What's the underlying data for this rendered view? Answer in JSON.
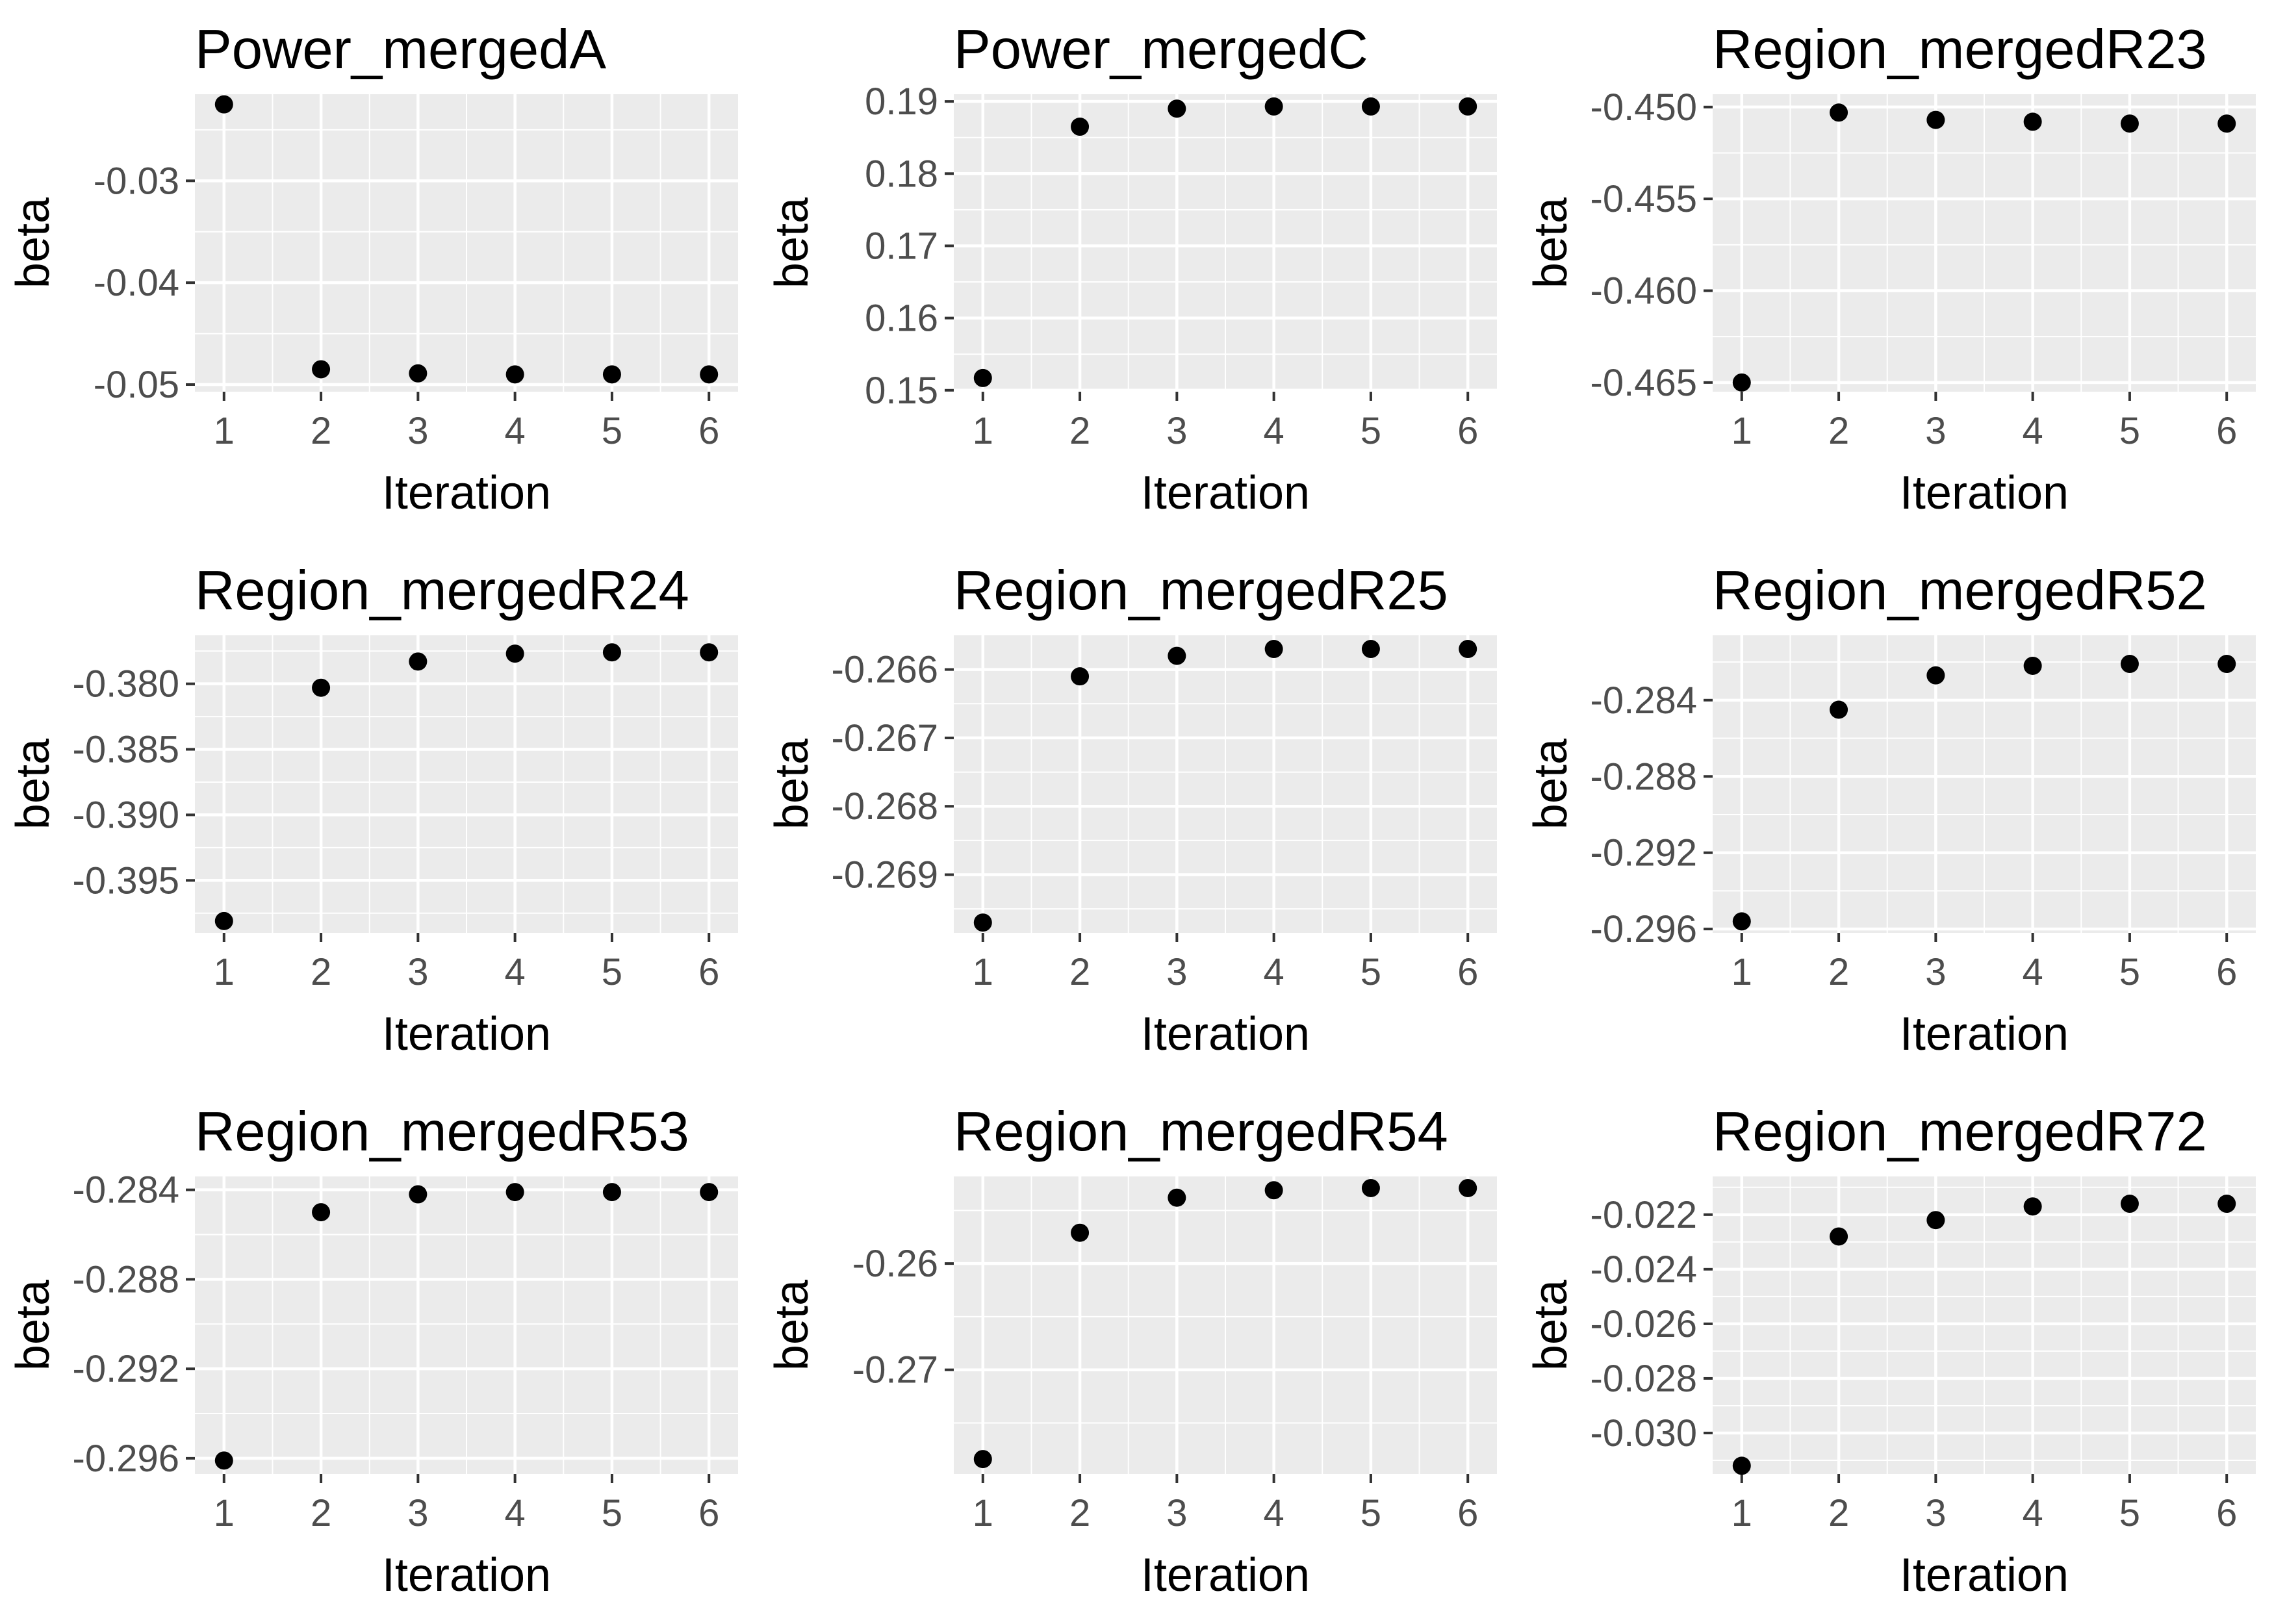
{
  "chart_data": [
    {
      "type": "scatter",
      "title": "Power_mergedA",
      "xlabel": "Iteration",
      "ylabel": "beta",
      "x": [
        1,
        2,
        3,
        4,
        5,
        6
      ],
      "x_ticks": [
        "1",
        "2",
        "3",
        "4",
        "5",
        "6"
      ],
      "y": [
        -0.0225,
        -0.0485,
        -0.0489,
        -0.049,
        -0.049,
        -0.049
      ],
      "y_ticks": [
        -0.03,
        -0.04,
        -0.05
      ],
      "y_tick_labels": [
        "-0.03",
        "-0.04",
        "-0.05"
      ],
      "ylim": [
        -0.0507,
        -0.0215
      ],
      "grid": true,
      "point_color": "#000000",
      "panel_color": "#ebebeb"
    },
    {
      "type": "scatter",
      "title": "Power_mergedC",
      "xlabel": "Iteration",
      "ylabel": "beta",
      "x": [
        1,
        2,
        3,
        4,
        5,
        6
      ],
      "x_ticks": [
        "1",
        "2",
        "3",
        "4",
        "5",
        "6"
      ],
      "y": [
        0.1517,
        0.1865,
        0.189,
        0.1893,
        0.1893,
        0.1893
      ],
      "y_ticks": [
        0.15,
        0.16,
        0.17,
        0.18,
        0.19
      ],
      "y_tick_labels": [
        "0.15",
        "0.16",
        "0.17",
        "0.18",
        "0.19"
      ],
      "ylim": [
        0.1498,
        0.191
      ],
      "grid": true,
      "point_color": "#000000",
      "panel_color": "#ebebeb"
    },
    {
      "type": "scatter",
      "title": "Region_mergedR23",
      "xlabel": "Iteration",
      "ylabel": "beta",
      "x": [
        1,
        2,
        3,
        4,
        5,
        6
      ],
      "x_ticks": [
        "1",
        "2",
        "3",
        "4",
        "5",
        "6"
      ],
      "y": [
        -0.465,
        -0.4503,
        -0.4507,
        -0.4508,
        -0.4509,
        -0.4509
      ],
      "y_ticks": [
        -0.45,
        -0.455,
        -0.46,
        -0.465
      ],
      "y_tick_labels": [
        "-0.450",
        "-0.455",
        "-0.460",
        "-0.465"
      ],
      "ylim": [
        -0.4655,
        -0.4493
      ],
      "grid": true,
      "point_color": "#000000",
      "panel_color": "#ebebeb"
    },
    {
      "type": "scatter",
      "title": "Region_mergedR24",
      "xlabel": "Iteration",
      "ylabel": "beta",
      "x": [
        1,
        2,
        3,
        4,
        5,
        6
      ],
      "x_ticks": [
        "1",
        "2",
        "3",
        "4",
        "5",
        "6"
      ],
      "y": [
        -0.3981,
        -0.3803,
        -0.3783,
        -0.3777,
        -0.3776,
        -0.3776
      ],
      "y_ticks": [
        -0.38,
        -0.385,
        -0.39,
        -0.395
      ],
      "y_tick_labels": [
        "-0.380",
        "-0.385",
        "-0.390",
        "-0.395"
      ],
      "ylim": [
        -0.399,
        -0.3763
      ],
      "grid": true,
      "point_color": "#000000",
      "panel_color": "#ebebeb"
    },
    {
      "type": "scatter",
      "title": "Region_mergedR25",
      "xlabel": "Iteration",
      "ylabel": "beta",
      "x": [
        1,
        2,
        3,
        4,
        5,
        6
      ],
      "x_ticks": [
        "1",
        "2",
        "3",
        "4",
        "5",
        "6"
      ],
      "y": [
        -0.2697,
        -0.2661,
        -0.2658,
        -0.2657,
        -0.2657,
        -0.2657
      ],
      "y_ticks": [
        -0.266,
        -0.267,
        -0.268,
        -0.269
      ],
      "y_tick_labels": [
        "-0.266",
        "-0.267",
        "-0.268",
        "-0.269"
      ],
      "ylim": [
        -0.26985,
        -0.2655
      ],
      "grid": true,
      "point_color": "#000000",
      "panel_color": "#ebebeb"
    },
    {
      "type": "scatter",
      "title": "Region_mergedR52",
      "xlabel": "Iteration",
      "ylabel": "beta",
      "x": [
        1,
        2,
        3,
        4,
        5,
        6
      ],
      "x_ticks": [
        "1",
        "2",
        "3",
        "4",
        "5",
        "6"
      ],
      "y": [
        -0.2956,
        -0.2845,
        -0.2827,
        -0.2822,
        -0.2821,
        -0.2821
      ],
      "y_ticks": [
        -0.284,
        -0.288,
        -0.292,
        -0.296
      ],
      "y_tick_labels": [
        "-0.284",
        "-0.288",
        "-0.292",
        "-0.296"
      ],
      "ylim": [
        -0.2962,
        -0.2806
      ],
      "grid": true,
      "point_color": "#000000",
      "panel_color": "#ebebeb"
    },
    {
      "type": "scatter",
      "title": "Region_mergedR53",
      "xlabel": "Iteration",
      "ylabel": "beta",
      "x": [
        1,
        2,
        3,
        4,
        5,
        6
      ],
      "x_ticks": [
        "1",
        "2",
        "3",
        "4",
        "5",
        "6"
      ],
      "y": [
        -0.2961,
        -0.285,
        -0.2842,
        -0.2841,
        -0.2841,
        -0.2841
      ],
      "y_ticks": [
        -0.284,
        -0.288,
        -0.292,
        -0.296
      ],
      "y_tick_labels": [
        "-0.284",
        "-0.288",
        "-0.292",
        "-0.296"
      ],
      "ylim": [
        -0.2967,
        -0.2834
      ],
      "grid": true,
      "point_color": "#000000",
      "panel_color": "#ebebeb"
    },
    {
      "type": "scatter",
      "title": "Region_mergedR54",
      "xlabel": "Iteration",
      "ylabel": "beta",
      "x": [
        1,
        2,
        3,
        4,
        5,
        6
      ],
      "x_ticks": [
        "1",
        "2",
        "3",
        "4",
        "5",
        "6"
      ],
      "y": [
        -0.2784,
        -0.2571,
        -0.2538,
        -0.2531,
        -0.2529,
        -0.2529
      ],
      "y_ticks": [
        -0.26,
        -0.27
      ],
      "y_tick_labels": [
        "-0.26",
        "-0.27"
      ],
      "ylim": [
        -0.2798,
        -0.2518
      ],
      "grid": true,
      "point_color": "#000000",
      "panel_color": "#ebebeb"
    },
    {
      "type": "scatter",
      "title": "Region_mergedR72",
      "xlabel": "Iteration",
      "ylabel": "beta",
      "x": [
        1,
        2,
        3,
        4,
        5,
        6
      ],
      "x_ticks": [
        "1",
        "2",
        "3",
        "4",
        "5",
        "6"
      ],
      "y": [
        -0.0312,
        -0.0228,
        -0.0222,
        -0.0217,
        -0.0216,
        -0.0216
      ],
      "y_ticks": [
        -0.022,
        -0.024,
        -0.026,
        -0.028,
        -0.03
      ],
      "y_tick_labels": [
        "-0.022",
        "-0.024",
        "-0.026",
        "-0.028",
        "-0.030"
      ],
      "ylim": [
        -0.0315,
        -0.0206
      ],
      "grid": true,
      "point_color": "#000000",
      "panel_color": "#ebebeb"
    }
  ]
}
